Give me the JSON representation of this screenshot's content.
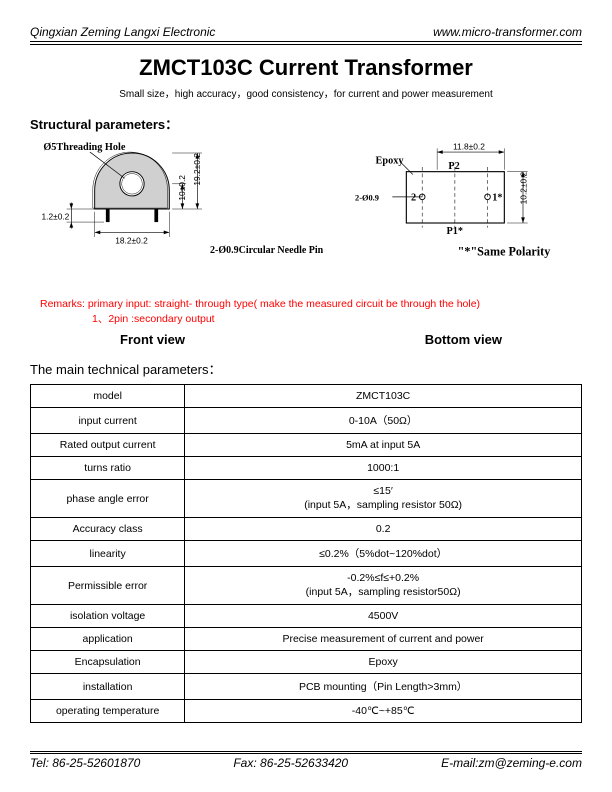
{
  "header": {
    "company": "Qingxian Zeming Langxi Electronic",
    "url": "www.micro-transformer.com"
  },
  "title": "ZMCT103C   Current Transformer",
  "subtitle": "Small size，high accuracy，good consistency，for current and power measurement",
  "structural_heading": "Structural parameters：",
  "front_diagram": {
    "threading_hole": "Ø5Threading Hole",
    "dim_width": "18.2±0.2",
    "dim_height": "19.2±0.2",
    "dim_pin_height": "10±0.2",
    "dim_pin_h": "1.2±0.2"
  },
  "bottom_diagram": {
    "epoxy": "Epoxy",
    "dim_width": "11.8±0.2",
    "dim_height": "10.2±0.2",
    "p1": "P1*",
    "p2": "P2",
    "pin1": "1*",
    "pin2": "2",
    "needle_pin": "2-Ø0.9Circular Needle Pin",
    "polarity": "\"*\"Same Polarity"
  },
  "remarks_line1": "Remarks: primary input: straight- through type( make the measured circuit be through the hole)",
  "remarks_line2": "1、2pin :secondary output",
  "front_view_label": "Front view",
  "bottom_view_label": "Bottom view",
  "tech_heading": "The main technical parameters：",
  "table_rows": [
    [
      "model",
      "ZMCT103C"
    ],
    [
      "input current",
      "0-10A（50Ω）"
    ],
    [
      "Rated output current",
      "5mA at input 5A"
    ],
    [
      "turns ratio",
      "1000:1"
    ],
    [
      "phase angle error",
      "≤15′\n(input 5A，sampling resistor 50Ω)"
    ],
    [
      "Accuracy class",
      "0.2"
    ],
    [
      "linearity",
      "≤0.2%（5%dot~120%dot）"
    ],
    [
      "Permissible error",
      "-0.2%≤f≤+0.2%\n(input 5A，sampling resistor50Ω)"
    ],
    [
      "isolation voltage",
      "4500V"
    ],
    [
      "application",
      "Precise measurement of current and power"
    ],
    [
      "Encapsulation",
      "Epoxy"
    ],
    [
      "installation",
      "PCB mounting（Pin Length>3mm）"
    ],
    [
      "operating temperature",
      "-40℃~+85℃"
    ]
  ],
  "footer": {
    "tel": "Tel: 86-25-52601870",
    "fax": "Fax: 86-25-52633420",
    "email": "E-mail:zm@zeming-e.com"
  }
}
